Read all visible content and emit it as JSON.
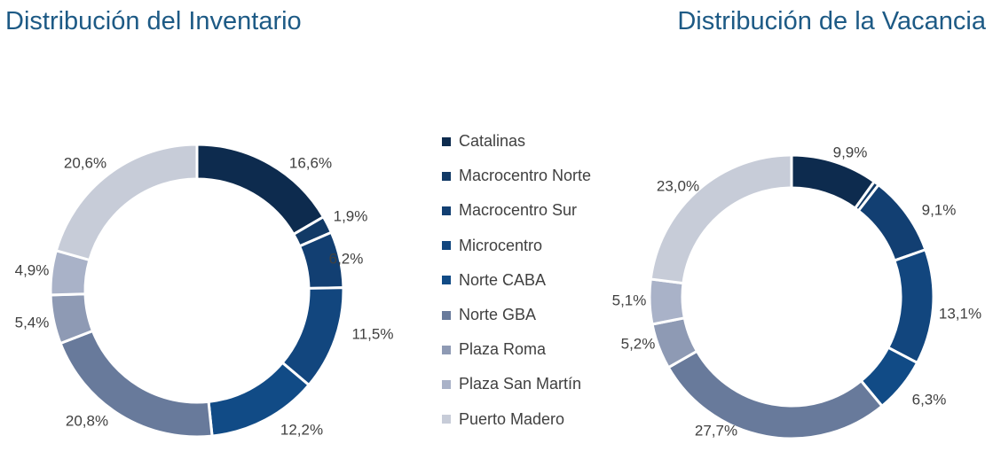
{
  "chart_data": [
    {
      "type": "pie",
      "title": "Distribución del Inventario",
      "categories": [
        "Catalinas",
        "Macrocentro Norte",
        "Macrocentro Sur",
        "Microcentro",
        "Norte CABA",
        "Norte GBA",
        "Plaza Roma",
        "Plaza San Martín",
        "Puerto Madero"
      ],
      "values": [
        16.6,
        1.9,
        6.2,
        11.5,
        12.2,
        20.8,
        5.4,
        4.9,
        20.6
      ],
      "labels": [
        "16,6%",
        "1,9%",
        "6,2%",
        "11,5%",
        "12,2%",
        "20,8%",
        "5,4%",
        "4,9%",
        "20,6%"
      ],
      "colors": [
        "#0d2b4e",
        "#123a66",
        "#123f72",
        "#12467e",
        "#114b86",
        "#687a9b",
        "#8e9ab4",
        "#a9b2c8",
        "#c7ccd8"
      ],
      "style": "donut",
      "legend": "shared, between charts"
    },
    {
      "type": "pie",
      "title": "Distribución de la Vacancia",
      "categories": [
        "Catalinas",
        "Macrocentro Norte",
        "Macrocentro Sur",
        "Microcentro",
        "Norte CABA",
        "Norte GBA",
        "Plaza Roma",
        "Plaza San Martín",
        "Puerto Madero"
      ],
      "values": [
        9.9,
        0.6,
        9.1,
        13.1,
        6.3,
        27.7,
        5.2,
        5.1,
        23.0
      ],
      "labels": [
        "9,9%",
        "",
        "9,1%",
        "13,1%",
        "6,3%",
        "27,7%",
        "5,2%",
        "5,1%",
        "23,0%"
      ],
      "colors": [
        "#0d2b4e",
        "#123a66",
        "#123f72",
        "#12467e",
        "#114b86",
        "#687a9b",
        "#8e9ab4",
        "#a9b2c8",
        "#c7ccd8"
      ],
      "style": "donut",
      "legend": "shared, between charts"
    }
  ],
  "legend": {
    "items": [
      {
        "label": "Catalinas",
        "color": "#0d2b4e"
      },
      {
        "label": "Macrocentro Norte",
        "color": "#123a66"
      },
      {
        "label": "Macrocentro Sur",
        "color": "#123f72"
      },
      {
        "label": "Microcentro",
        "color": "#12467e"
      },
      {
        "label": "Norte CABA",
        "color": "#114b86"
      },
      {
        "label": "Norte GBA",
        "color": "#687a9b"
      },
      {
        "label": "Plaza Roma",
        "color": "#8e9ab4"
      },
      {
        "label": "Plaza San Martín",
        "color": "#a9b2c8"
      },
      {
        "label": "Puerto Madero",
        "color": "#c7ccd8"
      }
    ]
  }
}
